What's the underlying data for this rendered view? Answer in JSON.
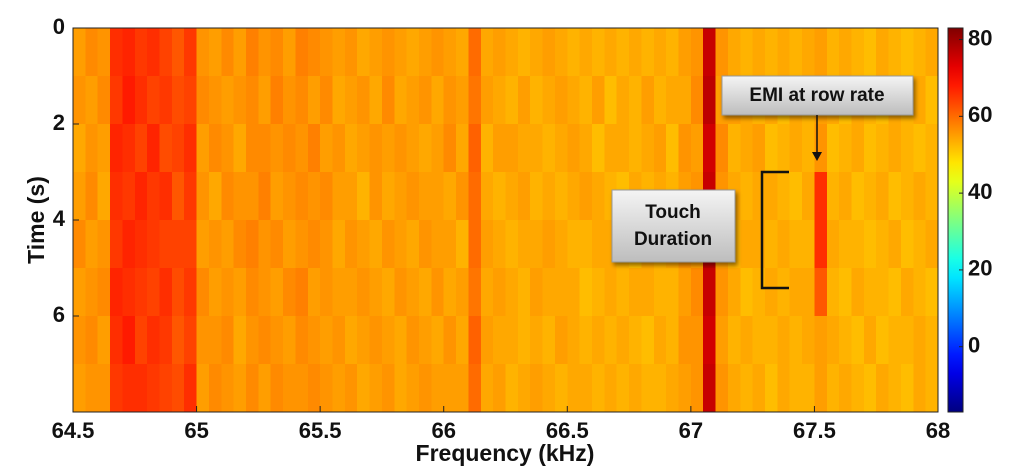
{
  "chart_data": {
    "type": "heatmap",
    "xlabel": "Frequency (kHz)",
    "ylabel": "Time (s)",
    "colormap": "jet",
    "xlim": [
      64.5,
      68
    ],
    "ylim": [
      0,
      8
    ],
    "y_inverted": true,
    "clim": [
      -17,
      83
    ],
    "xticks": [
      64.5,
      65,
      65.5,
      66,
      66.5,
      67,
      67.5,
      68
    ],
    "yticks": [
      0,
      2,
      4,
      6
    ],
    "cticks": [
      0,
      20,
      40,
      60,
      80
    ],
    "x": [
      64.525,
      64.575,
      64.625,
      64.675,
      64.725,
      64.775,
      64.825,
      64.875,
      64.925,
      64.975,
      65.025,
      65.075,
      65.125,
      65.175,
      65.225,
      65.275,
      65.325,
      65.375,
      65.425,
      65.475,
      65.525,
      65.575,
      65.625,
      65.675,
      65.725,
      65.775,
      65.825,
      65.875,
      65.925,
      65.975,
      66.025,
      66.075,
      66.125,
      66.175,
      66.225,
      66.275,
      66.325,
      66.375,
      66.425,
      66.475,
      66.525,
      66.575,
      66.625,
      66.675,
      66.725,
      66.775,
      66.825,
      66.875,
      66.925,
      66.975,
      67.025,
      67.075,
      67.125,
      67.175,
      67.225,
      67.275,
      67.325,
      67.375,
      67.425,
      67.475,
      67.525,
      67.575,
      67.625,
      67.675,
      67.725,
      67.775,
      67.825,
      67.875,
      67.925,
      67.975
    ],
    "y": [
      0.5,
      1.5,
      2.5,
      3.5,
      4.5,
      5.5,
      6.5,
      7.5
    ],
    "z": [
      [
        55,
        57,
        56,
        66,
        67,
        65,
        66,
        64,
        62,
        65,
        56,
        55,
        57,
        55,
        58,
        56,
        57,
        55,
        58,
        57,
        56,
        55,
        56,
        54,
        55,
        56,
        55,
        54,
        55,
        56,
        55,
        54,
        60,
        54,
        55,
        54,
        53,
        54,
        55,
        54,
        53,
        54,
        53,
        54,
        53,
        54,
        53,
        54,
        53,
        55,
        56,
        76,
        56,
        54,
        53,
        54,
        53,
        54,
        53,
        54,
        55,
        53,
        54,
        53,
        52,
        54,
        53,
        52,
        53,
        54
      ],
      [
        56,
        55,
        57,
        65,
        68,
        66,
        64,
        65,
        63,
        64,
        57,
        56,
        55,
        56,
        57,
        55,
        58,
        56,
        57,
        55,
        57,
        54,
        55,
        56,
        54,
        57,
        54,
        55,
        56,
        54,
        56,
        55,
        59,
        55,
        54,
        53,
        55,
        53,
        54,
        55,
        54,
        53,
        55,
        52,
        54,
        53,
        55,
        53,
        54,
        54,
        57,
        77,
        55,
        55,
        54,
        53,
        54,
        52,
        54,
        53,
        55,
        54,
        52,
        54,
        53,
        52,
        54,
        53,
        54,
        52
      ],
      [
        54,
        56,
        55,
        67,
        66,
        64,
        67,
        63,
        64,
        66,
        55,
        57,
        56,
        54,
        57,
        57,
        56,
        57,
        56,
        58,
        55,
        56,
        54,
        55,
        56,
        55,
        56,
        55,
        54,
        55,
        57,
        54,
        61,
        53,
        55,
        55,
        54,
        54,
        53,
        54,
        55,
        54,
        52,
        54,
        54,
        53,
        54,
        55,
        52,
        56,
        55,
        75,
        57,
        53,
        54,
        55,
        52,
        53,
        54,
        53,
        56,
        52,
        53,
        54,
        52,
        53,
        54,
        53,
        52,
        53
      ],
      [
        55,
        57,
        54,
        66,
        65,
        67,
        65,
        66,
        62,
        65,
        56,
        54,
        57,
        56,
        56,
        58,
        55,
        56,
        57,
        56,
        57,
        55,
        55,
        53,
        56,
        54,
        55,
        56,
        55,
        55,
        54,
        56,
        60,
        54,
        53,
        54,
        55,
        53,
        54,
        53,
        54,
        55,
        54,
        53,
        52,
        54,
        53,
        54,
        53,
        55,
        56,
        76,
        56,
        54,
        53,
        54,
        54,
        53,
        52,
        54,
        66,
        53,
        54,
        52,
        53,
        54,
        52,
        53,
        54,
        53
      ],
      [
        57,
        55,
        56,
        65,
        67,
        66,
        65,
        64,
        64,
        64,
        55,
        56,
        55,
        57,
        58,
        56,
        57,
        55,
        56,
        57,
        56,
        54,
        56,
        55,
        54,
        56,
        55,
        54,
        56,
        55,
        55,
        53,
        60,
        55,
        54,
        53,
        54,
        54,
        55,
        54,
        53,
        53,
        54,
        54,
        53,
        52,
        54,
        53,
        54,
        56,
        55,
        77,
        55,
        53,
        54,
        54,
        53,
        54,
        53,
        53,
        66,
        54,
        53,
        53,
        52,
        53,
        54,
        52,
        53,
        54
      ],
      [
        55,
        56,
        57,
        67,
        66,
        65,
        64,
        66,
        63,
        65,
        57,
        55,
        56,
        55,
        57,
        56,
        55,
        57,
        58,
        55,
        56,
        55,
        55,
        56,
        55,
        54,
        56,
        55,
        54,
        56,
        54,
        55,
        59,
        54,
        55,
        54,
        53,
        55,
        54,
        54,
        54,
        52,
        53,
        54,
        53,
        54,
        54,
        53,
        53,
        55,
        57,
        76,
        56,
        54,
        52,
        53,
        54,
        53,
        54,
        54,
        62,
        53,
        52,
        54,
        53,
        53,
        52,
        54,
        53,
        52
      ],
      [
        56,
        57,
        55,
        66,
        68,
        64,
        66,
        65,
        62,
        64,
        56,
        56,
        57,
        54,
        56,
        57,
        56,
        55,
        57,
        56,
        55,
        56,
        54,
        55,
        56,
        55,
        54,
        56,
        55,
        54,
        56,
        54,
        61,
        55,
        54,
        54,
        53,
        54,
        53,
        55,
        54,
        53,
        54,
        53,
        54,
        53,
        52,
        54,
        53,
        56,
        56,
        75,
        55,
        53,
        54,
        53,
        53,
        54,
        53,
        54,
        55,
        54,
        53,
        52,
        54,
        52,
        53,
        53,
        54,
        53
      ],
      [
        55,
        56,
        56,
        65,
        66,
        66,
        65,
        64,
        63,
        66,
        55,
        57,
        56,
        55,
        57,
        55,
        57,
        56,
        56,
        57,
        56,
        55,
        56,
        54,
        55,
        56,
        54,
        55,
        56,
        55,
        55,
        55,
        60,
        54,
        55,
        53,
        54,
        55,
        54,
        53,
        54,
        54,
        53,
        54,
        53,
        54,
        53,
        53,
        54,
        55,
        56,
        76,
        56,
        54,
        53,
        54,
        52,
        54,
        53,
        53,
        55,
        53,
        54,
        53,
        52,
        54,
        53,
        52,
        54,
        53
      ]
    ],
    "annotations": {
      "emi": "EMI at row rate",
      "touch": [
        "Touch",
        "Duration"
      ]
    }
  }
}
